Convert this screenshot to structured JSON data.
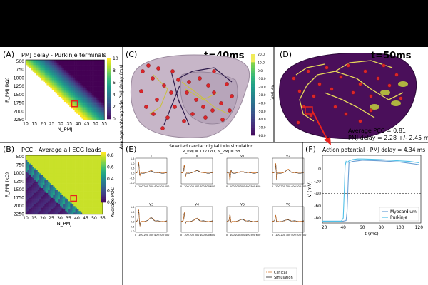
{
  "panels": {
    "A": {
      "letter": "(A)",
      "title": "PMJ delay - Purkinje terminals",
      "cbar_label": "Average anterograde PMJ delay (ms)",
      "cbar_ticks": [
        "0",
        "2",
        "4",
        "6",
        "8",
        "10"
      ]
    },
    "B": {
      "letter": "(B)",
      "title": "PCC - Average all ECG leads",
      "cbar_label": "Average PCC",
      "cbar_ticks": [
        "0.0",
        "0.2",
        "0.4",
        "0.6",
        "0.8"
      ]
    },
    "C": {
      "letter": "(C)",
      "time_label": "t=40ms",
      "cbar_ticks": [
        "20.0",
        "10.0",
        "0.0",
        "-10.0",
        "-20.0",
        "-30.0",
        "-40.0",
        "-50.0",
        "-60.0",
        "-70.0",
        "-80.0"
      ],
      "cbar_label": "Vm (mV)"
    },
    "D": {
      "letter": "(D)",
      "time_label": "t=50ms",
      "pcc_text": "Average PCC = 0.81",
      "delay_text": "PMJ delay = 2.28 +/- 2.45 ms"
    },
    "E": {
      "letter": "(E)",
      "title": "Selected cardiac digital twin simulation",
      "subtitle": "R_PMJ = 1777kΩ, N_PMJ = 38",
      "leads": [
        "I",
        "II",
        "V1",
        "V2",
        "V3",
        "V4",
        "V5",
        "V6"
      ],
      "legend": [
        "Clinical",
        "Simulation"
      ],
      "y_ticks": [
        "1.5",
        "1.0",
        "0.5",
        "0.0",
        "-0.5",
        "-1.0"
      ],
      "x_ticks": [
        "0",
        "100",
        "200",
        "300",
        "400",
        "500",
        "600"
      ]
    },
    "F": {
      "letter": "(F)",
      "title": "Action potential - PMJ delay = 4.34 ms",
      "ylabel": "V (mV)",
      "xlabel": "t (ms)",
      "legend": [
        "Myocardium",
        "Purkinje"
      ]
    }
  },
  "heatmap_axes": {
    "x_label": "N_PMJ",
    "y_label": "R_PMJ (kΩ)",
    "x_ticks": [
      "10",
      "15",
      "20",
      "25",
      "30",
      "35",
      "40",
      "45",
      "50",
      "55"
    ],
    "y_ticks": [
      "500",
      "750",
      "1000",
      "1250",
      "1500",
      "1750",
      "2000",
      "2250"
    ]
  },
  "chart_data": [
    {
      "type": "heatmap",
      "id": "A",
      "title": "PMJ delay - Purkinje terminals",
      "x": [
        10,
        15,
        20,
        25,
        30,
        35,
        40,
        45,
        50,
        55
      ],
      "y": [
        500,
        750,
        1000,
        1250,
        1500,
        1750,
        2000,
        2250
      ],
      "colorbar_range": [
        0,
        10
      ],
      "note": "Lower-left region (low N_PMJ, high R_PMJ) has no data; delay increases with R_PMJ and decreases with N_PMJ",
      "highlight": {
        "x": 38,
        "y": 1777
      }
    },
    {
      "type": "heatmap",
      "id": "B",
      "title": "PCC - Average all ECG leads",
      "x": [
        10,
        15,
        20,
        25,
        30,
        35,
        40,
        45,
        50,
        55
      ],
      "y": [
        500,
        750,
        1000,
        1250,
        1500,
        1750,
        2000,
        2250
      ],
      "colorbar_range": [
        0,
        0.85
      ],
      "note": "High PCC (~0.8) in upper-right region; low PCC along boundary",
      "highlight": {
        "x": 38,
        "y": 1777
      }
    },
    {
      "type": "line",
      "id": "E",
      "title": "Selected cardiac digital twin simulation",
      "x_range": [
        0,
        600
      ],
      "y_range": [
        -1.2,
        1.6
      ],
      "series": [
        "Clinical",
        "Simulation"
      ],
      "leads": [
        "I",
        "II",
        "V1",
        "V2",
        "V3",
        "V4",
        "V5",
        "V6"
      ]
    },
    {
      "type": "line",
      "id": "F",
      "title": "Action potential - PMJ delay = 4.34 ms",
      "xlabel": "t (ms)",
      "ylabel": "V (mV)",
      "x_ticks": [
        20,
        40,
        60,
        80,
        100,
        120
      ],
      "y_ticks": [
        0,
        -20,
        -40,
        -60,
        -80
      ],
      "xlim": [
        18,
        122
      ],
      "ylim": [
        -88,
        22
      ],
      "threshold": -40,
      "series": [
        {
          "name": "Myocardium",
          "color": "#6a9fd4",
          "x": [
            18,
            40,
            43,
            44,
            45,
            46,
            48,
            50,
            55,
            60,
            70,
            80,
            90,
            100,
            110,
            120
          ],
          "y": [
            -85,
            -85,
            -84,
            -70,
            -30,
            10,
            11,
            12,
            13,
            14,
            13.5,
            13,
            12,
            11,
            9,
            7
          ]
        },
        {
          "name": "Purkinje",
          "color": "#4fc0e8",
          "x": [
            18,
            38,
            40,
            41,
            42,
            43,
            44,
            46,
            50,
            55,
            60,
            70,
            80,
            90,
            100,
            110,
            120
          ],
          "y": [
            -85,
            -85,
            -80,
            -40,
            5,
            12,
            10,
            13,
            15,
            16,
            16,
            15.5,
            15,
            14,
            13,
            12,
            10
          ]
        }
      ]
    }
  ]
}
